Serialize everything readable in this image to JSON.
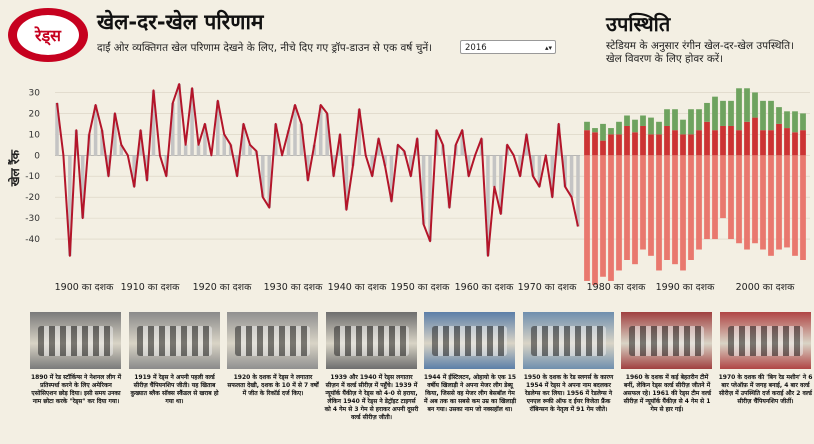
{
  "header": {
    "logo_text": "रेड्स",
    "title": "खेल-दर-खेल परिणाम",
    "subtitle": "दाईं ओर व्यक्तिगत खेल परिणाम देखने के लिए, नीचे दिए गए ड्रॉप-डाउन से एक वर्ष चुनें।",
    "year_select": "2016"
  },
  "attendance": {
    "title": "उपस्थिति",
    "subtitle": "स्टेडियम के अनुसार रंगीन खेल-दर-खेल उपस्थिति। खेल विवरण के लिए होवर करें।"
  },
  "colors": {
    "brand_red": "#c6011f",
    "line": "#b3152a",
    "bar_gray": "#c4c4c4",
    "att_green": "#6ea35f",
    "att_red": "#cc3333",
    "att_pink": "#e9786e"
  },
  "chart_data": {
    "type": "line",
    "ylabel": "खेल रैंक",
    "ylim": [
      -50,
      35
    ],
    "yticks": [
      30,
      20,
      10,
      0,
      -10,
      -20,
      -30,
      -40
    ],
    "decades": [
      "1900 का दशक",
      "1910 का दशक",
      "1920 का दशक",
      "1930 का दशक",
      "1940 का दशक",
      "1950 का दशक",
      "1960 का दशक",
      "1970 का दशक",
      "1980 का दशक",
      "1990 का दशक",
      "2000 का दशक"
    ],
    "season_values": [
      25,
      0,
      -48,
      12,
      -30,
      10,
      24,
      12,
      -10,
      20,
      5,
      0,
      -15,
      12,
      -12,
      31,
      0,
      -10,
      25,
      34,
      5,
      32,
      5,
      15,
      0,
      26,
      10,
      5,
      -10,
      15,
      5,
      2,
      -20,
      -25,
      15,
      0,
      12,
      24,
      15,
      -12,
      5,
      24,
      20,
      -10,
      10,
      -26,
      -5,
      22,
      0,
      -10,
      8,
      -5,
      -22,
      5,
      2,
      -10,
      8,
      -33,
      -41,
      12,
      5,
      -25,
      5,
      12,
      -10,
      0,
      8,
      -48,
      -15,
      -28,
      5,
      0,
      -10,
      10,
      -10,
      -15,
      0,
      -20,
      15,
      -15,
      -20,
      -34
    ],
    "attendance_stacks": [
      {
        "green": 4,
        "red": 12,
        "pink": -60
      },
      {
        "green": 2,
        "red": 11,
        "pink": -62
      },
      {
        "green": 8,
        "red": 7,
        "pink": -58
      },
      {
        "green": 3,
        "red": 10,
        "pink": -60
      },
      {
        "green": 6,
        "red": 10,
        "pink": -55
      },
      {
        "green": 5,
        "red": 14,
        "pink": -50
      },
      {
        "green": 6,
        "red": 11,
        "pink": -52
      },
      {
        "green": 5,
        "red": 14,
        "pink": -45
      },
      {
        "green": 8,
        "red": 10,
        "pink": -48
      },
      {
        "green": 6,
        "red": 10,
        "pink": -55
      },
      {
        "green": 8,
        "red": 14,
        "pink": -50
      },
      {
        "green": 10,
        "red": 12,
        "pink": -52
      },
      {
        "green": 7,
        "red": 10,
        "pink": -55
      },
      {
        "green": 12,
        "red": 10,
        "pink": -50
      },
      {
        "green": 10,
        "red": 12,
        "pink": -45
      },
      {
        "green": 9,
        "red": 16,
        "pink": -40
      },
      {
        "green": 16,
        "red": 12,
        "pink": -40
      },
      {
        "green": 12,
        "red": 14,
        "pink": -30
      },
      {
        "green": 12,
        "red": 14,
        "pink": -40
      },
      {
        "green": 20,
        "red": 12,
        "pink": -42
      },
      {
        "green": 16,
        "red": 16,
        "pink": -45
      },
      {
        "green": 12,
        "red": 18,
        "pink": -42
      },
      {
        "green": 14,
        "red": 12,
        "pink": -45
      },
      {
        "green": 14,
        "red": 12,
        "pink": -48
      },
      {
        "green": 8,
        "red": 15,
        "pink": -45
      },
      {
        "green": 8,
        "red": 13,
        "pink": -44
      },
      {
        "green": 10,
        "red": 11,
        "pink": -48
      },
      {
        "green": 8,
        "red": 12,
        "pink": -50
      }
    ]
  },
  "photos": [
    {
      "caption": "1890 में रेड स्टॉकिंग्स ने नेशनल लीग में प्रतिस्पर्धा करने के लिए अमेरिकन एसोसिएशन छोड़ दिया। इसी समय उनका नाम छोटा करके \"रेड्स\" कर दिया गया।",
      "tone": "#7a7a7a"
    },
    {
      "caption": "1919 में रेड्स ने अपनी पहली वर्ल्ड सीरीज़ चैंपियनशिप जीती। यह खिताब कुख्यात ब्लैक सॉक्स स्कैंडल से खराब हो गया था।",
      "tone": "#8a8a8a"
    },
    {
      "caption": "1920 के दशक में रेड्स ने लगातार सफलता देखी, दशक के 10 में से 7 वर्षों में जीत के रिकॉर्ड दर्ज किए।",
      "tone": "#909090"
    },
    {
      "caption": "1939 और 1940 में रेड्स लगातार सीज़न में वर्ल्ड सीरीज़ में पहुँचे। 1939 में न्यूयॉर्क यैंकीज़ ने रेड्स को 4-0 से हराया, लेकिन 1940 में रेड्स ने डेट्रॉइट टाइगर्स को 4 गेम से 3 गेम से हराकर अपनी दूसरी वर्ल्ड सीरीज़ जीती।",
      "tone": "#6e6e6e"
    },
    {
      "caption": "1944 में ईस्टिलटन, ओहायो के एक 15 वर्षीय खिलाड़ी ने अपना मेजर लीग डेब्यू किया, जिससे वह मेजर लीग बेसबॉल गेम में अब तक का सबसे कम उम्र का खिलाड़ी बन गया। उसका नाम जो नक्सहॉल था।",
      "tone": "#5c7fa8"
    },
    {
      "caption": "1950 के दशक के रेड स्लगर्स के कारण 1954 में रेड्स ने अपना नाम बदलकर रेडलेग्स कर लिया। 1956 में रेडलेग्स ने एनएल रूकी ऑफ द ईयर विजेता फ्रैंक रॉबिन्सन के नेतृत्व में 91 गेम जीते।",
      "tone": "#6f8fae"
    },
    {
      "caption": "1960 के दशक में कई बेहतरीन टीमें बनीं, लेकिन रेड्स वर्ल्ड सीरीज़ जीतने में असफल रहे। 1961 की रेड्स टीम वर्ल्ड सीरीज़ में न्यूयॉर्क यैंकीज़ से 4 गेम से 1 गेम से हार गई।",
      "tone": "#a04040"
    },
    {
      "caption": "1970 के दशक की 'बिग रेड मशीन' ने 6 बार प्लेऑफ़ में जगह बनाई, 4 बार वर्ल्ड सीरीज़ में उपस्थिति दर्ज कराई और 2 वर्ल्ड सीरीज़ चैंपियनशिप जीतीं।",
      "tone": "#b04545"
    }
  ]
}
